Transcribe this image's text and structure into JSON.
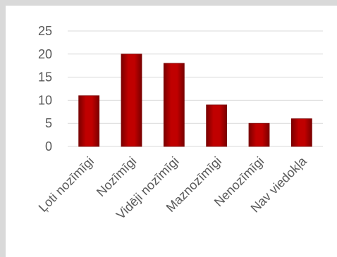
{
  "chart_data": {
    "type": "bar",
    "categories": [
      "Ļoti nozīmīgi",
      "Nozīmīgi",
      "Vidēji nozīmīgi",
      "Maznozīmīgi",
      "Nenozīmīgi",
      "Nav viedokļa"
    ],
    "values": [
      11,
      20,
      18,
      9,
      5,
      6
    ],
    "ylim": [
      0,
      25
    ],
    "yticks": [
      0,
      5,
      10,
      15,
      20,
      25
    ],
    "grid": true,
    "legend": "none",
    "colors": {
      "bar": "#c00000",
      "bar_dark": "#7a0000",
      "grid": "#d9d9d9",
      "axis_text": "#595959"
    }
  }
}
